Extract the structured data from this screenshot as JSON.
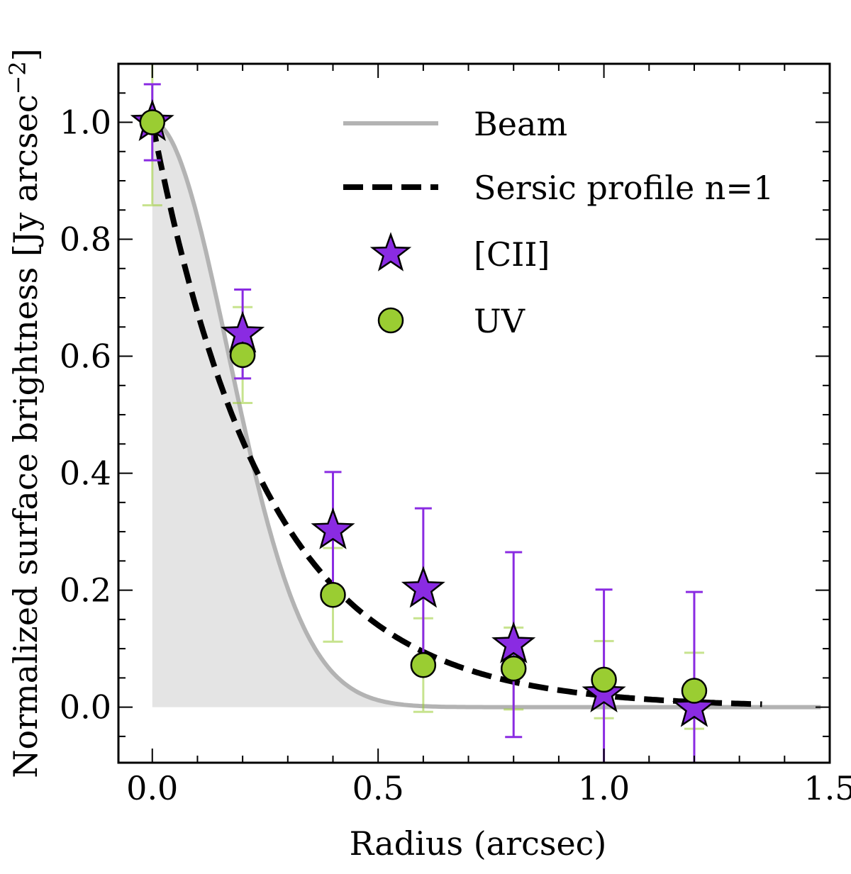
{
  "chart_data": {
    "type": "scatter",
    "xlabel": "Radius (arcsec)",
    "ylabel": "Normalized surface brightness [Jy arcsec",
    "ylabel_sup": "−2",
    "ylabel_close": "]",
    "xlim": [
      -0.075,
      1.5
    ],
    "ylim": [
      -0.095,
      1.1
    ],
    "xticks": [
      0.0,
      0.5,
      1.0,
      1.5
    ],
    "xtick_labels": [
      "0.0",
      "0.5",
      "1.0",
      "1.5"
    ],
    "yticks": [
      0.0,
      0.2,
      0.4,
      0.6,
      0.8,
      1.0
    ],
    "ytick_labels": [
      "0.0",
      "0.2",
      "0.4",
      "0.6",
      "0.8",
      "1.0"
    ],
    "legend_position": "upper-right",
    "series": [
      {
        "name": "Beam",
        "kind": "line",
        "color": "#b3b3b3",
        "fill_color": "#e4e4e4",
        "sigma_arcsec": 0.168,
        "x_range": [
          0.0,
          1.48
        ]
      },
      {
        "name": "Sersic profile n=1",
        "kind": "dashed-line",
        "color": "#000000",
        "scale_radius_arcsec": 0.2545,
        "x_range": [
          0.0,
          1.35
        ]
      },
      {
        "name": "[CII]",
        "kind": "points",
        "marker": "star",
        "color": "#8a2be2",
        "x": [
          0.0,
          0.2,
          0.4,
          0.6,
          0.8,
          1.0,
          1.2
        ],
        "y": [
          1.0,
          0.638,
          0.302,
          0.202,
          0.107,
          0.023,
          -0.002
        ],
        "yerr": [
          0.065,
          0.076,
          0.1,
          0.138,
          0.158,
          0.178,
          0.199
        ]
      },
      {
        "name": "UV",
        "kind": "points",
        "marker": "circle",
        "color": "#9acd32",
        "x": [
          0.0,
          0.2,
          0.4,
          0.6,
          0.8,
          1.0,
          1.2
        ],
        "y": [
          1.0,
          0.602,
          0.192,
          0.072,
          0.066,
          0.047,
          0.028
        ],
        "yerr": [
          0.142,
          0.082,
          0.08,
          0.08,
          0.07,
          0.066,
          0.065
        ]
      }
    ]
  }
}
